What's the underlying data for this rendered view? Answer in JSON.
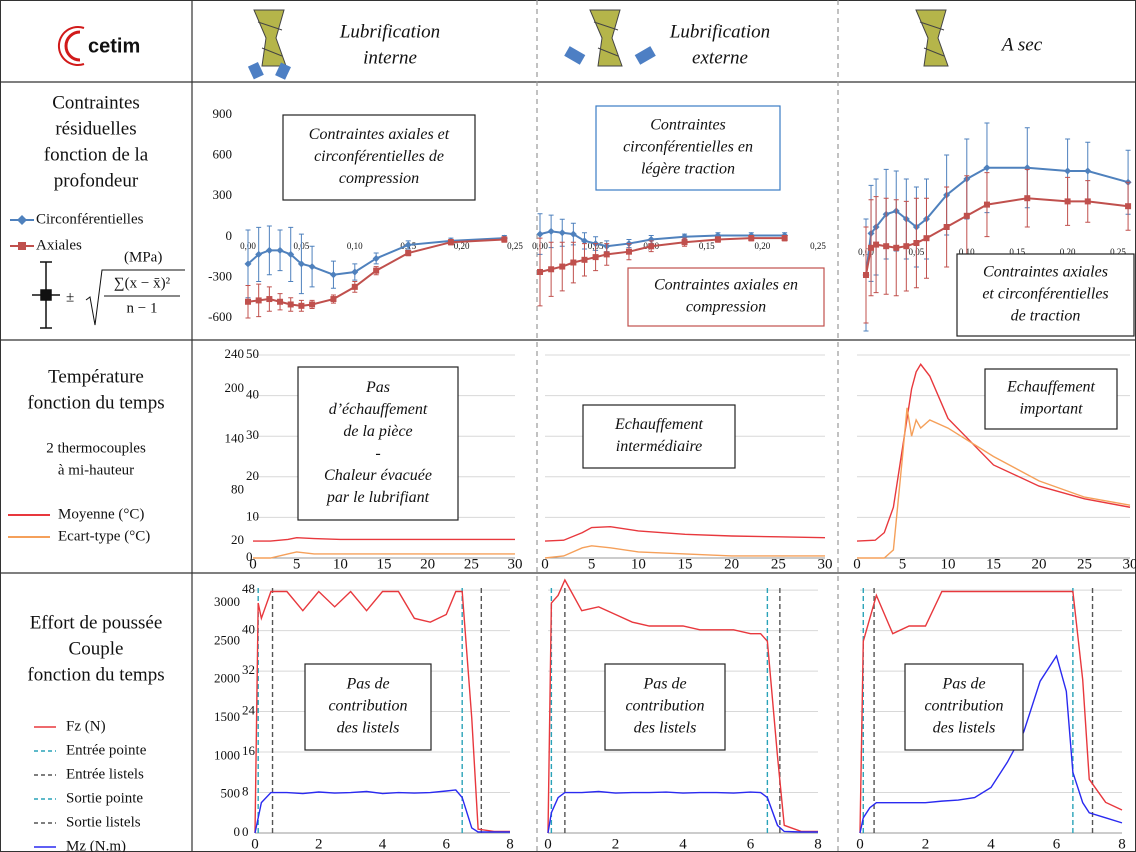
{
  "header": {
    "logo": "cetim",
    "columns": [
      [
        "Lubrification",
        "interne"
      ],
      [
        "Lubrification",
        "externe"
      ],
      [
        "A sec"
      ]
    ],
    "column_colors": [
      "#3a7cc4",
      "#2aa84a",
      "#e8262b"
    ]
  },
  "rows": [
    {
      "title": [
        "Contraintes",
        "résiduelles",
        "fonction de la",
        "profondeur"
      ],
      "unit": "(MPa)",
      "formula": {
        "sign": "±",
        "numerator": "∑(x − x̄)²",
        "denominator": "n − 1"
      }
    },
    {
      "title": [
        "Température",
        "fonction du temps"
      ],
      "note": [
        "2 thermocouples",
        "à mi-hauteur"
      ]
    },
    {
      "title": [
        "Effort de poussée",
        "Couple",
        "fonction du temps"
      ]
    }
  ],
  "chart_data": [
    {
      "type": "line",
      "x": [
        0,
        0.01,
        0.02,
        0.03,
        0.04,
        0.05,
        0.06,
        0.08,
        0.1,
        0.12,
        0.15,
        0.19,
        0.24
      ],
      "xlim": [
        0,
        0.25
      ],
      "xticks": [
        {
          "value": 0,
          "label": "0,00"
        },
        {
          "value": 0.05,
          "label": "0,05"
        },
        {
          "value": 0.1,
          "label": "0,10"
        },
        {
          "value": 0.15,
          "label": "0,15"
        },
        {
          "value": 0.2,
          "label": "0,20"
        },
        {
          "value": 0.25,
          "label": "0,25"
        }
      ],
      "ylim": [
        -600,
        900
      ],
      "yticks": [
        -600,
        -300,
        0,
        300,
        600,
        900
      ],
      "tick_labels": true,
      "series": [
        {
          "name": "Circonférentielles",
          "color": "#4f81bd",
          "marker": "diamond",
          "values": [
            -200,
            -130,
            -100,
            -100,
            -130,
            -200,
            -220,
            -280,
            -260,
            -160,
            -60,
            -30,
            -10
          ],
          "errors": [
            250,
            200,
            180,
            150,
            200,
            220,
            150,
            100,
            60,
            40,
            30,
            20,
            20
          ]
        },
        {
          "name": "Axiales",
          "color": "#c0504d",
          "marker": "square",
          "values": [
            -480,
            -470,
            -460,
            -480,
            -500,
            -510,
            -500,
            -460,
            -370,
            -250,
            -120,
            -40,
            -20
          ],
          "errors": [
            120,
            120,
            90,
            60,
            50,
            40,
            30,
            30,
            40,
            30,
            20,
            20,
            20
          ]
        }
      ],
      "annotations": [
        {
          "lines": [
            "Contraintes axiales et",
            "circonférentielles de",
            "compression"
          ],
          "border": "#222222"
        }
      ]
    },
    {
      "type": "line",
      "x": [
        0,
        0.01,
        0.02,
        0.03,
        0.04,
        0.05,
        0.06,
        0.08,
        0.1,
        0.13,
        0.16,
        0.19,
        0.22
      ],
      "xlim": [
        0,
        0.25
      ],
      "xticks": [
        {
          "value": 0,
          "label": "0,00"
        },
        {
          "value": 0.05,
          "label": "0,05"
        },
        {
          "value": 0.1,
          "label": "0,10"
        },
        {
          "value": 0.15,
          "label": "0,15"
        },
        {
          "value": 0.2,
          "label": "0,20"
        },
        {
          "value": 0.25,
          "label": "0,25"
        }
      ],
      "ylim": [
        -600,
        900
      ],
      "tick_labels": false,
      "series": [
        {
          "color": "#4f81bd",
          "marker": "diamond",
          "values": [
            20,
            40,
            30,
            20,
            -30,
            -50,
            -70,
            -50,
            -20,
            0,
            10,
            10,
            10
          ],
          "errors": [
            150,
            120,
            100,
            80,
            60,
            50,
            40,
            30,
            30,
            20,
            20,
            20,
            20
          ]
        },
        {
          "color": "#c0504d",
          "marker": "square",
          "values": [
            -260,
            -240,
            -220,
            -190,
            -170,
            -150,
            -130,
            -110,
            -70,
            -40,
            -20,
            -10,
            -10
          ],
          "errors": [
            250,
            200,
            180,
            150,
            120,
            100,
            80,
            60,
            40,
            30,
            20,
            20,
            20
          ]
        }
      ],
      "annotations": [
        {
          "lines": [
            "Contraintes",
            "circonférentielles en",
            "légère traction"
          ],
          "border": "#3a7cc4"
        },
        {
          "lines": [
            "Contraintes axiales en",
            "compression"
          ],
          "border": "#c0504d"
        }
      ]
    },
    {
      "type": "line",
      "x": [
        0,
        0.005,
        0.01,
        0.02,
        0.03,
        0.04,
        0.05,
        0.06,
        0.08,
        0.1,
        0.12,
        0.16,
        0.2,
        0.22,
        0.26
      ],
      "xlim": [
        0,
        0.25
      ],
      "xticks": [
        {
          "value": 0,
          "label": "0,00"
        },
        {
          "value": 0.05,
          "label": "0,05"
        },
        {
          "value": 0.1,
          "label": "0,10"
        },
        {
          "value": 0.15,
          "label": "0,15"
        },
        {
          "value": 0.2,
          "label": "0,20"
        },
        {
          "value": 0.25,
          "label": "0,25"
        }
      ],
      "ylim": [
        -600,
        900
      ],
      "tick_labels": false,
      "series": [
        {
          "color": "#4f81bd",
          "marker": "diamond",
          "values": [
            -200,
            60,
            100,
            180,
            200,
            150,
            100,
            150,
            300,
            400,
            470,
            470,
            450,
            450,
            380
          ],
          "errors": [
            350,
            300,
            300,
            280,
            250,
            250,
            250,
            250,
            250,
            250,
            280,
            250,
            200,
            180,
            200
          ]
        },
        {
          "color": "#c0504d",
          "marker": "square",
          "values": [
            -200,
            -30,
            -10,
            -20,
            -30,
            -20,
            0,
            30,
            100,
            170,
            240,
            280,
            260,
            260,
            230
          ],
          "errors": [
            300,
            300,
            300,
            300,
            300,
            280,
            280,
            250,
            250,
            250,
            200,
            180,
            150,
            130,
            150
          ]
        }
      ],
      "annotations": [
        {
          "lines": [
            "Contraintes axiales",
            "et circonférentielles",
            "de traction"
          ],
          "border": "#222222"
        }
      ]
    },
    {
      "type": "line",
      "x": [
        0,
        2,
        4,
        5,
        7,
        10,
        15,
        20,
        25,
        30
      ],
      "xlim": [
        0,
        30
      ],
      "xticks": [
        0,
        5,
        10,
        15,
        20,
        25,
        30
      ],
      "ylim": [
        0,
        240
      ],
      "yticks": [
        20,
        80,
        140,
        200,
        240
      ],
      "y2lim": [
        0,
        50
      ],
      "y2ticks": [
        0,
        10,
        20,
        30,
        40,
        50
      ],
      "grid": "y2",
      "tick_labels": true,
      "series": [
        {
          "name": "Moyenne (°C)",
          "color": "#e8383d",
          "values": [
            20,
            20,
            22,
            24,
            23,
            22,
            22,
            22,
            22,
            22
          ]
        },
        {
          "name": "Ecart-type (°C)",
          "color": "#f5a05a",
          "axis": "y2",
          "values": [
            0,
            0,
            1,
            1.5,
            1,
            1,
            1,
            1,
            1,
            1
          ]
        }
      ],
      "annotations": [
        {
          "lines": [
            "Pas",
            "d’échauffement",
            "de la pièce",
            "-",
            "Chaleur évacuée",
            "par le lubrifiant"
          ],
          "border": "#222222"
        }
      ]
    },
    {
      "type": "line",
      "x": [
        0,
        2,
        4,
        5,
        7,
        10,
        15,
        20,
        25,
        30
      ],
      "xlim": [
        0,
        30
      ],
      "xticks": [
        0,
        5,
        10,
        15,
        20,
        25,
        30
      ],
      "ylim": [
        0,
        240
      ],
      "y2lim": [
        0,
        50
      ],
      "y2ticks": [
        0,
        10,
        20,
        30,
        40,
        50
      ],
      "grid": "y2",
      "tick_labels": false,
      "series": [
        {
          "color": "#e8383d",
          "values": [
            20,
            21,
            30,
            36,
            37,
            32,
            28,
            26,
            25,
            24
          ]
        },
        {
          "color": "#f5a05a",
          "axis": "y2",
          "values": [
            0,
            0.5,
            2.5,
            3,
            2.5,
            1.5,
            1,
            0.5,
            0.5,
            0.5
          ]
        }
      ],
      "annotations": [
        {
          "lines": [
            "Echauffement",
            "intermédiaire"
          ],
          "border": "#222222"
        }
      ]
    },
    {
      "type": "line",
      "x": [
        0,
        2,
        3,
        4,
        5,
        5.5,
        6,
        6.5,
        7,
        8,
        10,
        15,
        20,
        25,
        30
      ],
      "xlim": [
        0,
        30
      ],
      "xticks": [
        0,
        5,
        10,
        15,
        20,
        25,
        30
      ],
      "ylim": [
        0,
        240
      ],
      "y2lim": [
        0,
        50
      ],
      "y2ticks": [
        0,
        10,
        20,
        30,
        40,
        50
      ],
      "grid": "y2",
      "tick_labels": false,
      "series": [
        {
          "color": "#e8383d",
          "values": [
            20,
            21,
            30,
            60,
            130,
            165,
            200,
            220,
            229,
            215,
            165,
            110,
            85,
            70,
            60
          ]
        },
        {
          "color": "#f5a05a",
          "axis": "y2",
          "values": [
            0,
            0,
            0,
            2,
            25,
            37,
            30,
            34,
            32,
            34,
            32,
            25,
            19,
            15,
            13
          ]
        }
      ],
      "annotations": [
        {
          "lines": [
            "Echauffement",
            "important"
          ],
          "border": "#222222"
        }
      ]
    },
    {
      "type": "line",
      "x": [
        0,
        0.1,
        0.2,
        0.5,
        1,
        1.5,
        2,
        2.5,
        3,
        3.5,
        4,
        4.5,
        5,
        5.5,
        6,
        6.3,
        6.5,
        6.8,
        7,
        7.5,
        8
      ],
      "xlim": [
        0,
        8
      ],
      "xticks": [
        0,
        2,
        4,
        6,
        8
      ],
      "ylim": [
        0,
        3300
      ],
      "yticks": [
        0,
        500,
        1000,
        1500,
        2000,
        2500,
        3000
      ],
      "y2lim": [
        0,
        50
      ],
      "y2ticks": [
        0,
        8,
        16,
        24,
        32,
        40,
        48
      ],
      "grid": "y2",
      "tick_labels": true,
      "series": [
        {
          "name": "Fz (N)",
          "color": "#e8383d",
          "values": [
            0,
            3000,
            2800,
            3150,
            3150,
            2900,
            3150,
            2950,
            3150,
            2900,
            3150,
            3150,
            2800,
            2750,
            2850,
            3150,
            3150,
            1500,
            50,
            20,
            20
          ]
        },
        {
          "name": "Mz (N.m)",
          "color": "#2a2af0",
          "axis": "y2",
          "values": [
            0,
            3,
            6,
            8,
            8,
            7.8,
            8.1,
            7.9,
            8,
            8.2,
            7.8,
            8,
            7.9,
            8,
            8.3,
            8.5,
            7,
            1,
            0.2,
            0.2,
            0.2
          ]
        }
      ],
      "markers": [
        {
          "name": "Entrée pointe",
          "color": "#2aa3b8",
          "x": 0.1
        },
        {
          "name": "Entrée listels",
          "color": "#555555",
          "x": 0.55
        },
        {
          "name": "Sortie pointe",
          "color": "#2aa3b8",
          "x": 6.5
        },
        {
          "name": "Sortie listels",
          "color": "#555555",
          "x": 7.1
        }
      ],
      "annotations": [
        {
          "lines": [
            "Pas de",
            "contribution",
            "des listels"
          ],
          "border": "#222222"
        }
      ]
    },
    {
      "type": "line",
      "x": [
        0,
        0.1,
        0.3,
        0.5,
        1,
        1.5,
        2,
        2.5,
        3,
        3.5,
        4,
        4.5,
        5,
        5.5,
        6,
        6.3,
        6.5,
        6.8,
        7,
        7.5,
        8
      ],
      "xlim": [
        0,
        8
      ],
      "xticks": [
        0,
        2,
        4,
        6,
        8
      ],
      "ylim": [
        0,
        3300
      ],
      "y2lim": [
        0,
        50
      ],
      "y2ticks": [
        0,
        8,
        16,
        24,
        32,
        40,
        48
      ],
      "grid": "y2",
      "tick_labels": false,
      "series": [
        {
          "color": "#e8383d",
          "values": [
            0,
            3000,
            3100,
            3300,
            2900,
            2950,
            2850,
            2750,
            2700,
            2700,
            2700,
            2650,
            2650,
            2650,
            2600,
            2600,
            2500,
            1000,
            100,
            20,
            20
          ]
        },
        {
          "color": "#2a2af0",
          "axis": "y2",
          "values": [
            0,
            4,
            7,
            8,
            8,
            8.2,
            7.9,
            8,
            8,
            8.1,
            7.9,
            8,
            8,
            7.9,
            8.1,
            8,
            7,
            1.5,
            0.3,
            0.2,
            0.2
          ]
        }
      ],
      "markers": [
        {
          "color": "#2aa3b8",
          "x": 0.1
        },
        {
          "color": "#555555",
          "x": 0.5
        },
        {
          "color": "#2aa3b8",
          "x": 6.5
        },
        {
          "color": "#555555",
          "x": 6.87
        }
      ],
      "annotations": [
        {
          "lines": [
            "Pas de",
            "contribution",
            "des listels"
          ],
          "border": "#222222"
        }
      ]
    },
    {
      "type": "line",
      "x": [
        0,
        0.1,
        0.3,
        0.5,
        1,
        1.5,
        2,
        2.5,
        3,
        3.5,
        4,
        4.5,
        5,
        5.5,
        6,
        6.3,
        6.5,
        6.8,
        7,
        7.5,
        8
      ],
      "xlim": [
        0,
        8
      ],
      "xticks": [
        0,
        2,
        4,
        6,
        8
      ],
      "ylim": [
        0,
        3300
      ],
      "y2lim": [
        0,
        50
      ],
      "y2ticks": [
        0,
        8,
        16,
        24,
        32,
        40,
        48
      ],
      "grid": "y2",
      "tick_labels": false,
      "series": [
        {
          "color": "#e8383d",
          "values": [
            0,
            2500,
            2800,
            3100,
            2600,
            2700,
            2700,
            3150,
            3150,
            3150,
            3150,
            3150,
            3150,
            3150,
            3150,
            3150,
            3150,
            2000,
            700,
            400,
            300
          ]
        },
        {
          "color": "#2a2af0",
          "axis": "y2",
          "values": [
            0,
            3,
            5,
            6,
            6,
            6,
            6,
            6.3,
            6.5,
            7,
            9,
            14,
            20,
            30,
            35,
            28,
            12,
            6,
            4,
            3,
            2
          ]
        }
      ],
      "markers": [
        {
          "color": "#2aa3b8",
          "x": 0.1
        },
        {
          "color": "#555555",
          "x": 0.43
        },
        {
          "color": "#2aa3b8",
          "x": 6.5
        },
        {
          "color": "#555555",
          "x": 7.1
        }
      ],
      "annotations": [
        {
          "lines": [
            "Pas de",
            "contribution",
            "des listels"
          ],
          "border": "#222222"
        }
      ]
    }
  ]
}
